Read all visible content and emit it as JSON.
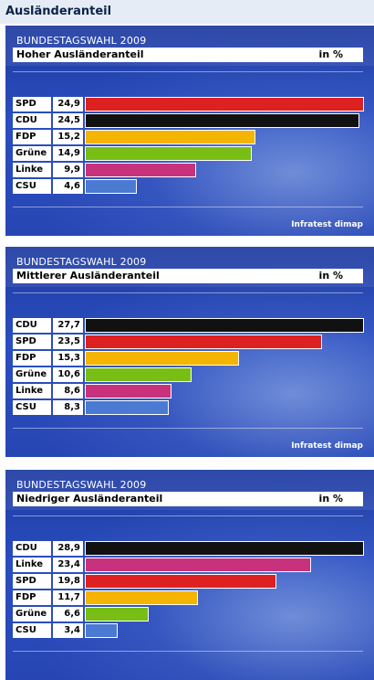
{
  "page": {
    "title": "Ausländeranteil"
  },
  "colors": {
    "SPD": "#dd2020",
    "CDU": "#111111",
    "FDP": "#f5b400",
    "Grüne": "#78be14",
    "Linke": "#c8327c",
    "CSU": "#4a7ad2"
  },
  "chart_data": [
    {
      "type": "bar",
      "orientation": "horizontal",
      "subtitle": "BUNDESTAGSWAHL 2009",
      "title": "Hoher Ausländeranteil",
      "unit": "in %",
      "credit": "Infratest dimap",
      "categories": [
        "SPD",
        "CDU",
        "FDP",
        "Grüne",
        "Linke",
        "CSU"
      ],
      "values": [
        24.9,
        24.5,
        15.2,
        14.9,
        9.9,
        4.6
      ],
      "value_labels": [
        "24,9",
        "24,5",
        "15,2",
        "14,9",
        "9,9",
        "4,6"
      ],
      "xlim": [
        0,
        24.9
      ]
    },
    {
      "type": "bar",
      "orientation": "horizontal",
      "subtitle": "BUNDESTAGSWAHL 2009",
      "title": "Mittlerer Ausländeranteil",
      "unit": "in %",
      "credit": "Infratest dimap",
      "categories": [
        "CDU",
        "SPD",
        "FDP",
        "Grüne",
        "Linke",
        "CSU"
      ],
      "values": [
        27.7,
        23.5,
        15.3,
        10.6,
        8.6,
        8.3
      ],
      "value_labels": [
        "27,7",
        "23,5",
        "15,3",
        "10,6",
        "8,6",
        "8,3"
      ],
      "xlim": [
        0,
        27.7
      ]
    },
    {
      "type": "bar",
      "orientation": "horizontal",
      "subtitle": "BUNDESTAGSWAHL 2009",
      "title": "Niedriger Ausländeranteil",
      "unit": "in %",
      "credit": "",
      "categories": [
        "CDU",
        "Linke",
        "SPD",
        "FDP",
        "Grüne",
        "CSU"
      ],
      "values": [
        28.9,
        23.4,
        19.8,
        11.7,
        6.6,
        3.4
      ],
      "value_labels": [
        "28,9",
        "23,4",
        "19,8",
        "11,7",
        "6,6",
        "3,4"
      ],
      "xlim": [
        0,
        28.9
      ]
    }
  ]
}
